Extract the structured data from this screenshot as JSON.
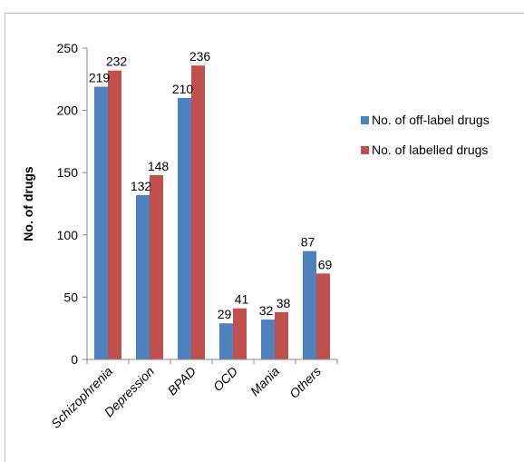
{
  "chart_data": {
    "type": "bar",
    "title": "",
    "xlabel": "",
    "ylabel": "No. of drugs",
    "ylim": [
      0,
      250
    ],
    "yticks": [
      0,
      50,
      100,
      150,
      200,
      250
    ],
    "grid": false,
    "legend_position": "right",
    "categories": [
      "Schizophrenia",
      "Depression",
      "BPAD",
      "OCD",
      "Mania",
      "Others"
    ],
    "series": [
      {
        "name": "No. of off-label drugs",
        "color": "#4f81bd",
        "values": [
          219,
          132,
          210,
          29,
          32,
          87
        ]
      },
      {
        "name": "No. of labelled drugs",
        "color": "#c0504d",
        "values": [
          232,
          148,
          236,
          41,
          38,
          69
        ]
      }
    ]
  }
}
